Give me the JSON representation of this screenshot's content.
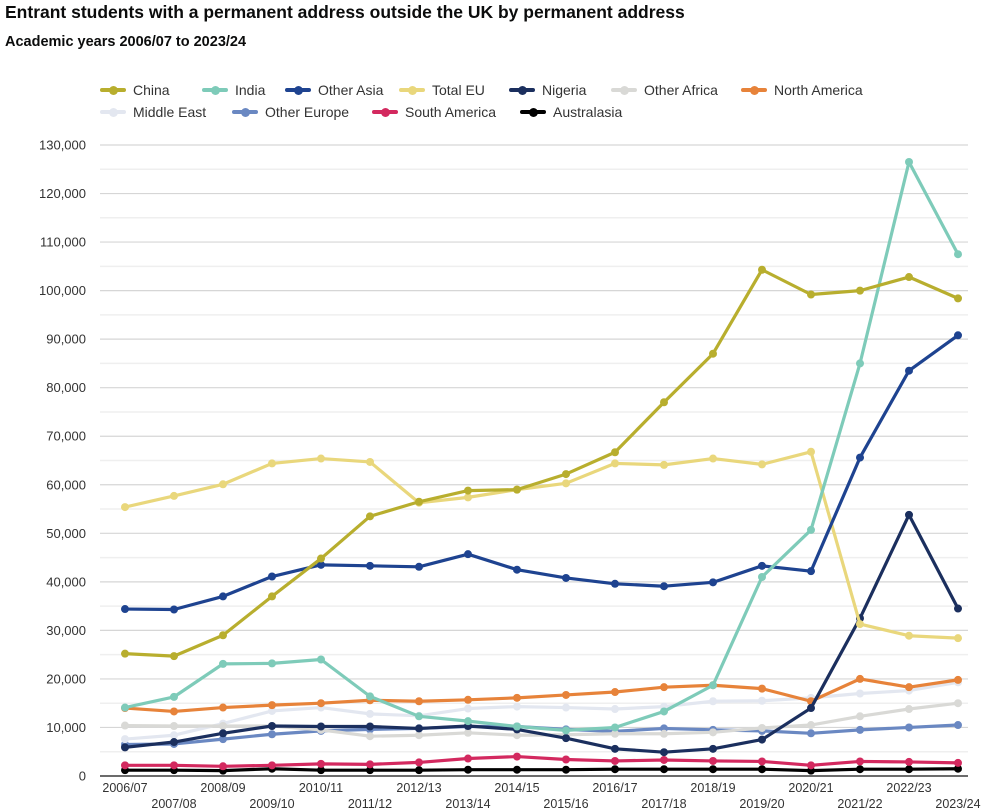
{
  "chart_data": {
    "type": "line",
    "title": "Entrant students with a permanent address outside the UK by permanent address",
    "subtitle": "Academic years 2006/07 to 2023/24",
    "xlabel": "",
    "ylabel": "",
    "ylim": [
      0,
      130000
    ],
    "yticks": [
      0,
      10000,
      20000,
      30000,
      40000,
      50000,
      60000,
      70000,
      80000,
      90000,
      100000,
      110000,
      120000,
      130000
    ],
    "ytick_labels": [
      "0",
      "10,000",
      "20,000",
      "30,000",
      "40,000",
      "50,000",
      "60,000",
      "70,000",
      "80,000",
      "90,000",
      "100,000",
      "110,000",
      "120,000",
      "130,000"
    ],
    "grid": true,
    "legend_position": "top",
    "categories": [
      "2006/07",
      "2007/08",
      "2008/09",
      "2009/10",
      "2010/11",
      "2011/12",
      "2012/13",
      "2013/14",
      "2014/15",
      "2015/16",
      "2016/17",
      "2017/18",
      "2018/19",
      "2019/20",
      "2020/21",
      "2021/22",
      "2022/23",
      "2023/24"
    ],
    "series": [
      {
        "name": "China",
        "color": "#b8ae2e",
        "values": [
          25200,
          24700,
          29000,
          37000,
          44800,
          53500,
          56500,
          58800,
          59000,
          62200,
          66700,
          77000,
          87000,
          104300,
          99200,
          100000,
          102800,
          98400
        ]
      },
      {
        "name": "India",
        "color": "#7ecbb9",
        "values": [
          14100,
          16300,
          23100,
          23200,
          24000,
          16400,
          12300,
          11300,
          10200,
          9400,
          10000,
          13300,
          18700,
          41000,
          50700,
          85000,
          126500,
          107500
        ]
      },
      {
        "name": "Other Asia",
        "color": "#1e4390",
        "values": [
          34400,
          34300,
          37000,
          41100,
          43500,
          43300,
          43100,
          45700,
          42500,
          40800,
          39600,
          39100,
          39900,
          43300,
          42200,
          65600,
          83500,
          90800
        ]
      },
      {
        "name": "Total EU",
        "color": "#e9d77c",
        "values": [
          55400,
          57700,
          60100,
          64400,
          65400,
          64700,
          56300,
          57400,
          59000,
          60300,
          64400,
          64100,
          65400,
          64200,
          66800,
          31300,
          28900,
          28400
        ]
      },
      {
        "name": "Nigeria",
        "color": "#1b2f5e",
        "values": [
          5900,
          7000,
          8800,
          10300,
          10200,
          10200,
          9800,
          10300,
          9600,
          7800,
          5600,
          4900,
          5600,
          7500,
          14000,
          32500,
          53800,
          34500
        ]
      },
      {
        "name": "Other Africa",
        "color": "#d9d9d6",
        "values": [
          10400,
          10300,
          10300,
          10300,
          9500,
          8200,
          8400,
          8900,
          8400,
          8500,
          8700,
          8700,
          9000,
          9900,
          10500,
          12300,
          13800,
          15000
        ]
      },
      {
        "name": "North America",
        "color": "#e7833a",
        "values": [
          14000,
          13300,
          14100,
          14600,
          15000,
          15600,
          15400,
          15700,
          16100,
          16700,
          17300,
          18300,
          18700,
          18000,
          15400,
          20000,
          18300,
          19800
        ]
      },
      {
        "name": "Middle East",
        "color": "#e3e7f0",
        "values": [
          7600,
          8400,
          10800,
          13400,
          14100,
          12800,
          12400,
          13900,
          14300,
          14100,
          13800,
          14300,
          15400,
          15500,
          16100,
          17000,
          17600,
          19300
        ]
      },
      {
        "name": "Other Europe",
        "color": "#6a88c2",
        "values": [
          6500,
          6600,
          7600,
          8600,
          9300,
          9600,
          9800,
          10200,
          10200,
          9600,
          9200,
          9800,
          9500,
          9300,
          8800,
          9500,
          10000,
          10500
        ]
      },
      {
        "name": "South America",
        "color": "#d3295f",
        "values": [
          2200,
          2200,
          2000,
          2200,
          2500,
          2400,
          2800,
          3600,
          4000,
          3400,
          3100,
          3300,
          3100,
          3000,
          2200,
          3000,
          2900,
          2700
        ]
      },
      {
        "name": "Australasia",
        "color": "#000000",
        "values": [
          1200,
          1200,
          1100,
          1500,
          1200,
          1200,
          1200,
          1300,
          1300,
          1300,
          1400,
          1400,
          1400,
          1400,
          1100,
          1400,
          1400,
          1500
        ]
      }
    ]
  }
}
